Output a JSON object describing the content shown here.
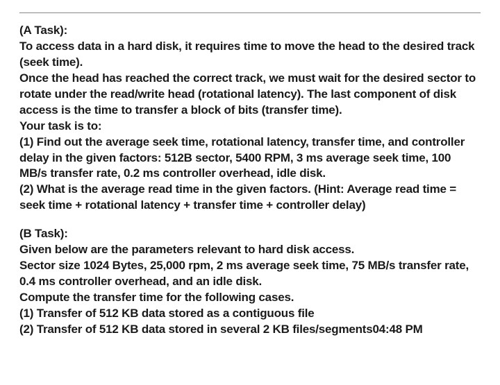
{
  "taskA": {
    "heading": "(A Task):",
    "para1": "To access data in a hard disk, it requires time to move the head to the desired track (seek time).",
    "para2": "Once the head has reached the correct track, we must wait for the desired sector to rotate under the read/write head (rotational latency). The last component of disk access is the time to transfer a block of bits (transfer time).",
    "para3": "Your task is to:",
    "item1": "(1) Find out the average seek time, rotational latency, transfer time, and controller delay in the given factors: 512B sector, 5400 RPM, 3 ms average seek time, 100 MB/s transfer rate, 0.2 ms controller overhead, idle disk.",
    "item2": "(2) What is the average read time in the given factors. (Hint: Average read time = seek time + rotational latency + transfer time + controller delay)"
  },
  "taskB": {
    "heading": "(B Task):",
    "para1": "Given below are the parameters relevant to hard disk access.",
    "para2": "Sector size 1024 Bytes, 25,000 rpm, 2 ms average seek time, 75 MB/s transfer rate, 0.4 ms controller overhead, and an idle disk.",
    "para3": "Compute the transfer time for the following cases.",
    "item1": "(1) Transfer of 512 KB data stored as a contiguous file",
    "item2": "(2) Transfer of 512 KB data stored in several 2 KB files/segments04:48 PM"
  }
}
